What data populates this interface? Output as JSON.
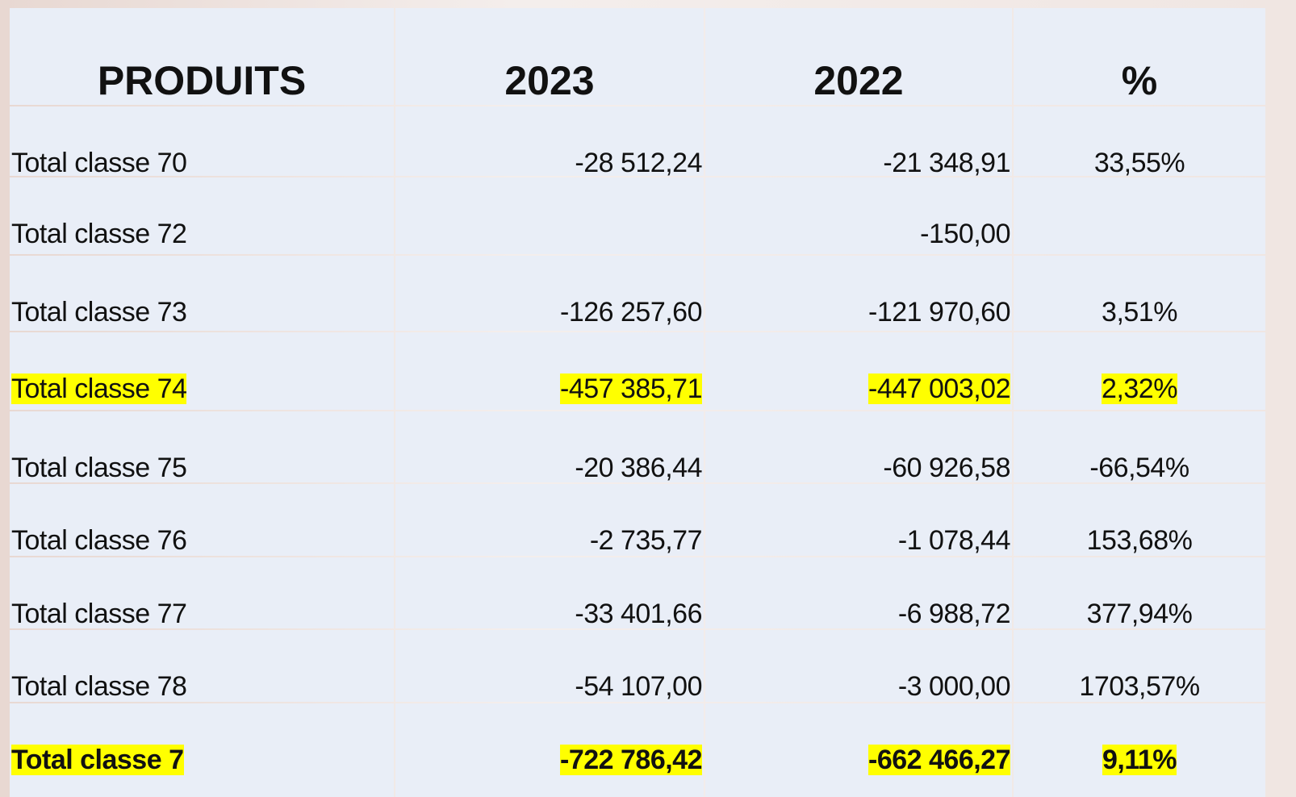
{
  "table": {
    "header": [
      "PRODUITS",
      "2023",
      "2022",
      "%"
    ],
    "rows": [
      {
        "label": "Total classe 70",
        "v2023": "-28 512,24",
        "v2022": "-21 348,91",
        "pct": "33,55%"
      },
      {
        "label": "Total classe 72",
        "v2022": "-150,00"
      },
      {
        "label": "Total classe 73",
        "v2023": "-126 257,60",
        "v2022": "-121 970,60",
        "pct": "3,51%"
      },
      {
        "label": "Total classe 74",
        "v2023": "-457 385,71",
        "v2022": "-447 003,02",
        "pct": "2,32%",
        "highlight": true
      },
      {
        "label": "Total classe 75",
        "v2023": "-20 386,44",
        "v2022": "-60 926,58",
        "pct": "-66,54%"
      },
      {
        "label": "Total classe 76",
        "v2023": "-2 735,77",
        "v2022": "-1 078,44",
        "pct": "153,68%"
      },
      {
        "label": "Total classe 77",
        "v2023": "-33 401,66",
        "v2022": "-6 988,72",
        "pct": "377,94%"
      },
      {
        "label": "Total classe 78",
        "v2023": "-54 107,00",
        "v2022": "-3 000,00",
        "pct": "1703,57%"
      },
      {
        "label": "Total classe 7",
        "v2023": "-722 786,42",
        "v2022": "-662 466,27",
        "pct": "9,11%",
        "highlight": true,
        "bold": true
      }
    ]
  }
}
